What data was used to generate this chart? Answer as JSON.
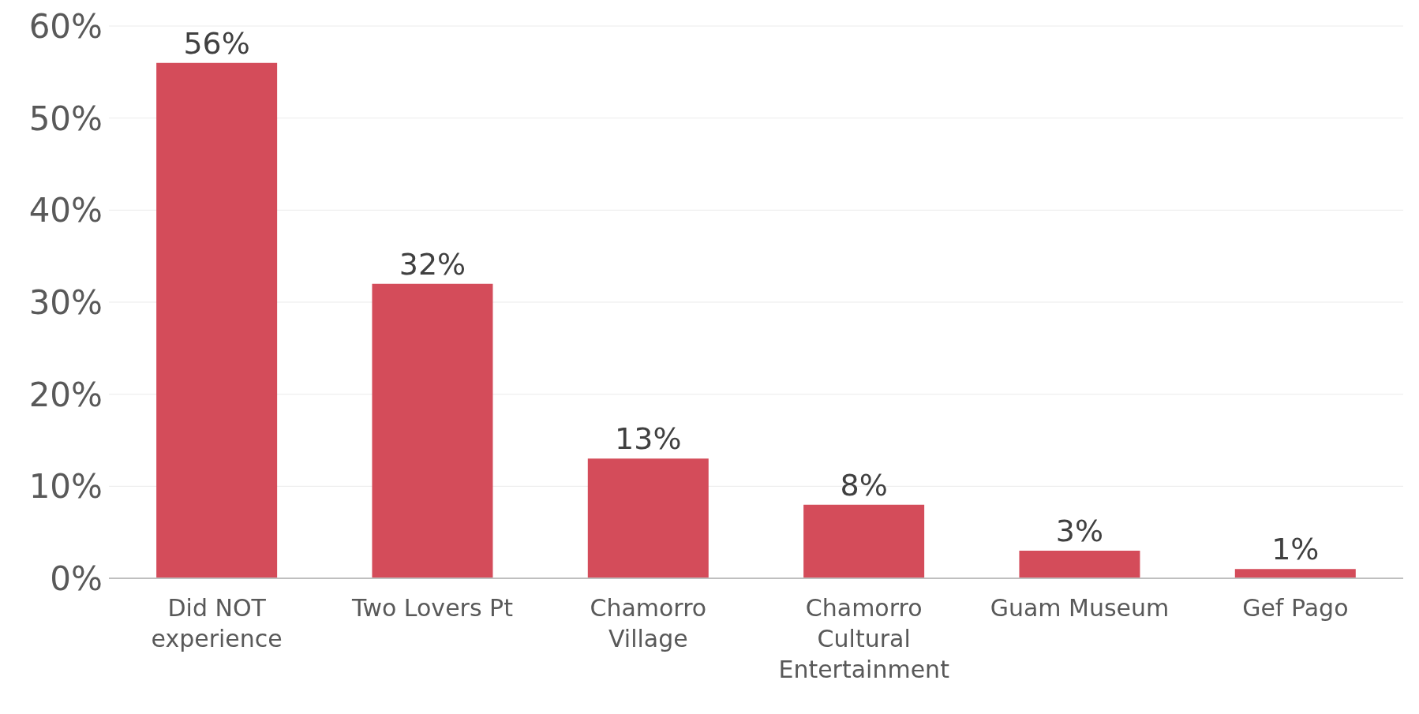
{
  "chart_data": {
    "type": "bar",
    "categories": [
      "Did NOT experience",
      "Two Lovers Pt",
      "Chamorro Village",
      "Chamorro Cultural Entertainment",
      "Guam Museum",
      "Gef Pago"
    ],
    "values": [
      56,
      32,
      13,
      8,
      3,
      1
    ],
    "color": "#d44c5a",
    "value_labels": [
      "56%",
      "32%",
      "13%",
      "8%",
      "3%",
      "1%"
    ],
    "ylim": [
      0,
      60
    ],
    "yticks": [
      {
        "value": 0,
        "label": "0%"
      },
      {
        "value": 10,
        "label": "10%"
      },
      {
        "value": 20,
        "label": "20%"
      },
      {
        "value": 30,
        "label": "30%"
      },
      {
        "value": 40,
        "label": "40%"
      },
      {
        "value": 50,
        "label": "50%"
      },
      {
        "value": 60,
        "label": "60%"
      }
    ],
    "grid": "y"
  }
}
